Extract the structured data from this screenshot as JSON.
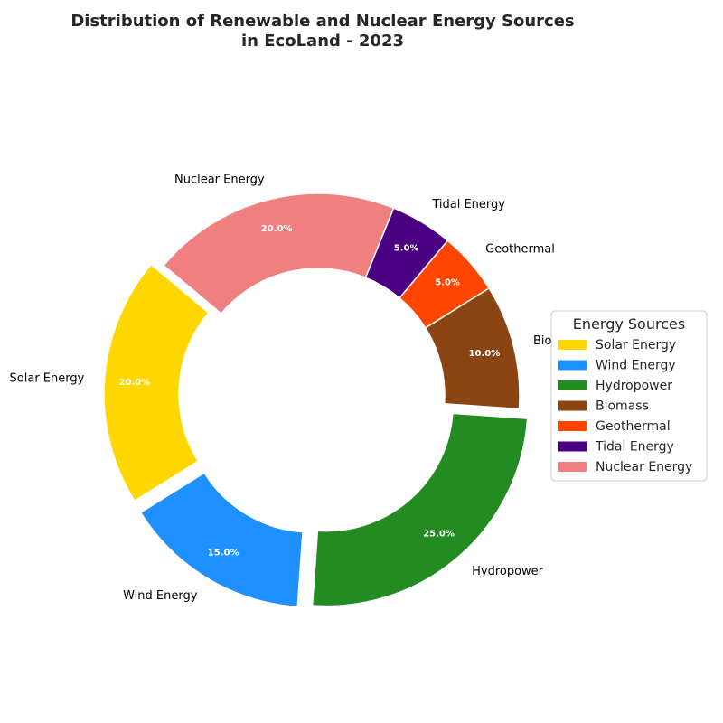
{
  "chart_data": {
    "type": "pie",
    "donut": true,
    "title_lines": [
      "Distribution of Renewable and Nuclear Energy Sources",
      "in EcoLand - 2023"
    ],
    "categories": [
      "Solar Energy",
      "Wind Energy",
      "Hydropower",
      "Biomass",
      "Geothermal",
      "Tidal Energy",
      "Nuclear Energy"
    ],
    "values": [
      20,
      15,
      25,
      10,
      5,
      5,
      20
    ],
    "percent_labels": [
      "20.0%",
      "15.0%",
      "25.0%",
      "10.0%",
      "5.0%",
      "5.0%",
      "20.0%"
    ],
    "colors": [
      "#FFD700",
      "#1E90FF",
      "#228B22",
      "#8B4513",
      "#FF4500",
      "#4B0082",
      "#F08080"
    ],
    "exploded": [
      "Solar Energy",
      "Wind Energy",
      "Hydropower"
    ],
    "start_angle_deg": 140,
    "direction": "counterclockwise",
    "legend": {
      "title": "Energy Sources",
      "placement": "center-right",
      "entries": [
        "Solar Energy",
        "Wind Energy",
        "Hydropower",
        "Biomass",
        "Geothermal",
        "Tidal Energy",
        "Nuclear Energy"
      ]
    }
  }
}
